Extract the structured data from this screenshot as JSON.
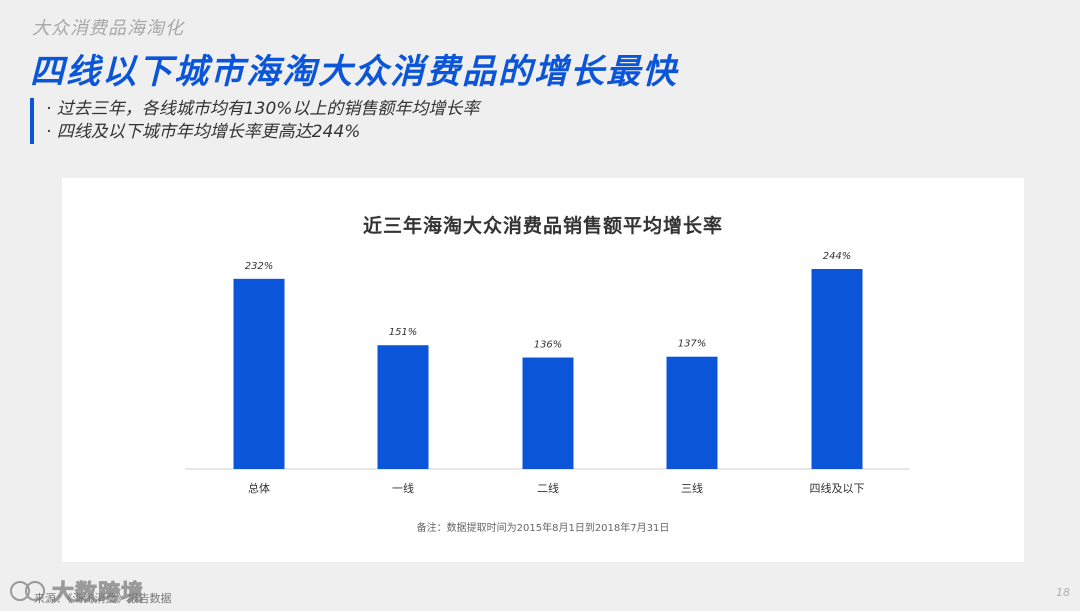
{
  "section_label": "大众消费品海淘化",
  "headline": "四线以下城市海淘大众消费品的增长最快",
  "bullets": [
    "· 过去三年，各线城市均有130%以上的销售额年均增长率",
    "· 四线及以下城市年均增长率更高达244%"
  ],
  "chart_data": {
    "type": "bar",
    "title": "近三年海淘大众消费品销售额平均增长率",
    "categories": [
      "总体",
      "一线",
      "二线",
      "三线",
      "四线及以下"
    ],
    "values": [
      232,
      151,
      136,
      137,
      244
    ],
    "value_labels": [
      "232%",
      "151%",
      "136%",
      "137%",
      "244%"
    ],
    "xlabel": "",
    "ylabel": "",
    "ylim": [
      0,
      244
    ],
    "grid": false,
    "bar_color": "#0b55d9",
    "baseline_color": "#cfcfcf"
  },
  "footnote": "备注：数据提取时间为2015年8月1日到2018年7月31日",
  "footer": {
    "source": "来源：《海淘消费》报告数据",
    "watermark": "大数跨境",
    "page_number": "18"
  },
  "colors": {
    "accent": "#0b55d9",
    "background": "#efefef",
    "card": "#ffffff"
  }
}
